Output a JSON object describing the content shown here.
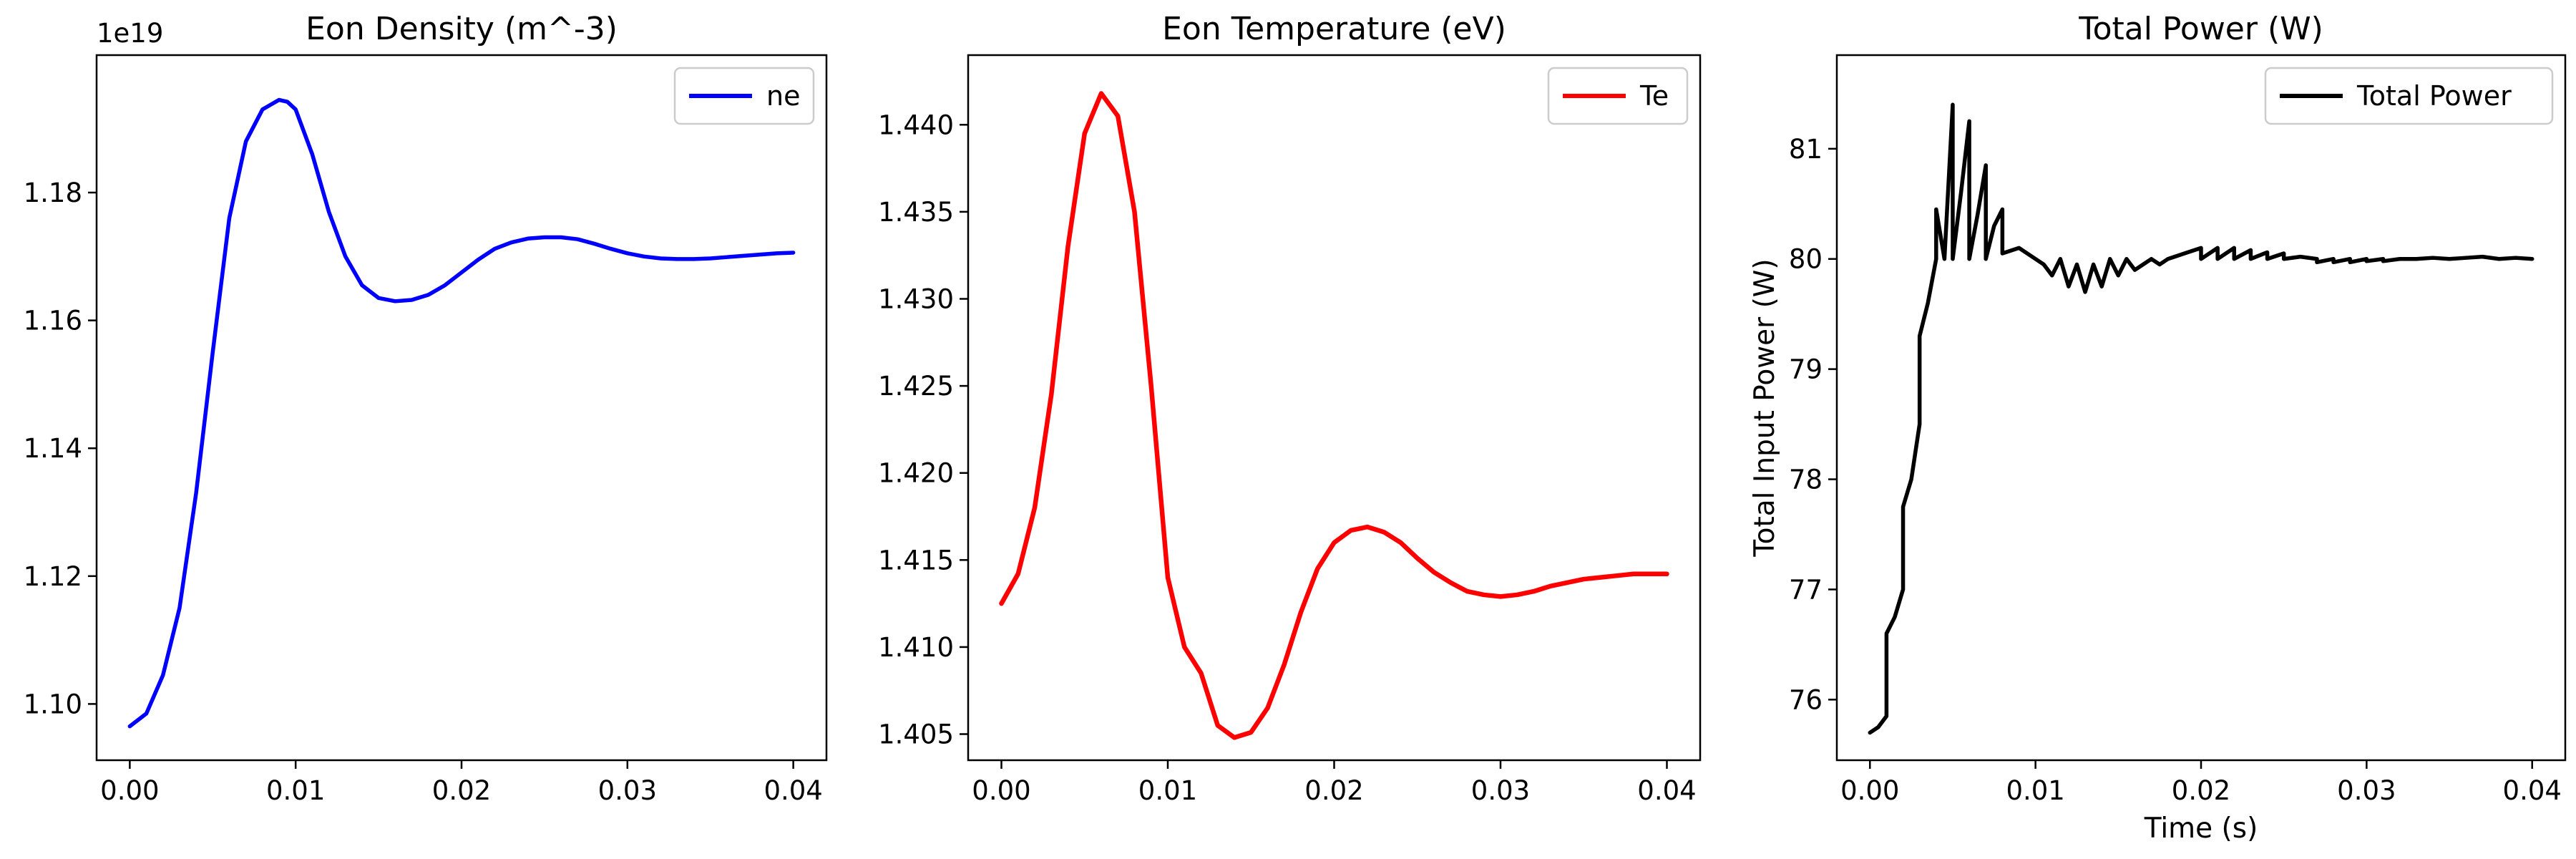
{
  "chart_data": [
    {
      "type": "line",
      "title": "Eon Density (m^-3)",
      "xlabel": "",
      "ylabel": "",
      "offset_text": "1e19",
      "xlim": [
        -0.002,
        0.042
      ],
      "ylim": [
        1.0912,
        1.2015
      ],
      "xticks": [
        0,
        0.01,
        0.02,
        0.03,
        0.04
      ],
      "xtick_labels": [
        "0.00",
        "0.01",
        "0.02",
        "0.03",
        "0.04"
      ],
      "yticks": [
        1.1,
        1.12,
        1.14,
        1.16,
        1.18
      ],
      "ytick_labels": [
        "1.10",
        "1.12",
        "1.14",
        "1.16",
        "1.18"
      ],
      "grid": false,
      "legend_position": "upper right",
      "series": [
        {
          "name": "ne",
          "color": "#0000ff",
          "x": [
            0,
            0.001,
            0.002,
            0.003,
            0.004,
            0.005,
            0.006,
            0.007,
            0.008,
            0.009,
            0.0095,
            0.01,
            0.011,
            0.012,
            0.013,
            0.014,
            0.015,
            0.016,
            0.017,
            0.018,
            0.019,
            0.02,
            0.021,
            0.022,
            0.023,
            0.024,
            0.025,
            0.026,
            0.027,
            0.028,
            0.029,
            0.03,
            0.031,
            0.032,
            0.033,
            0.034,
            0.035,
            0.036,
            0.037,
            0.038,
            0.039,
            0.04
          ],
          "y": [
            1.0965,
            1.0985,
            1.1045,
            1.115,
            1.133,
            1.155,
            1.176,
            1.188,
            1.193,
            1.1945,
            1.1942,
            1.193,
            1.186,
            1.177,
            1.17,
            1.1655,
            1.1635,
            1.163,
            1.1632,
            1.164,
            1.1655,
            1.1675,
            1.1695,
            1.1712,
            1.1722,
            1.1728,
            1.173,
            1.173,
            1.1727,
            1.172,
            1.1712,
            1.1705,
            1.17,
            1.1697,
            1.1696,
            1.1696,
            1.1697,
            1.1699,
            1.1701,
            1.1703,
            1.1705,
            1.1706
          ]
        }
      ]
    },
    {
      "type": "line",
      "title": "Eon Temperature (eV)",
      "xlabel": "",
      "ylabel": "",
      "xlim": [
        -0.002,
        0.042
      ],
      "ylim": [
        1.4035,
        1.444
      ],
      "xticks": [
        0,
        0.01,
        0.02,
        0.03,
        0.04
      ],
      "xtick_labels": [
        "0.00",
        "0.01",
        "0.02",
        "0.03",
        "0.04"
      ],
      "yticks": [
        1.405,
        1.41,
        1.415,
        1.42,
        1.425,
        1.43,
        1.435,
        1.44
      ],
      "ytick_labels": [
        "1.405",
        "1.410",
        "1.415",
        "1.420",
        "1.425",
        "1.430",
        "1.435",
        "1.440"
      ],
      "grid": false,
      "legend_position": "upper right",
      "series": [
        {
          "name": "Te",
          "color": "#ff0000",
          "x": [
            0,
            0.001,
            0.002,
            0.003,
            0.004,
            0.005,
            0.006,
            0.007,
            0.008,
            0.009,
            0.01,
            0.011,
            0.012,
            0.013,
            0.014,
            0.015,
            0.016,
            0.017,
            0.018,
            0.019,
            0.02,
            0.021,
            0.022,
            0.023,
            0.024,
            0.025,
            0.026,
            0.027,
            0.028,
            0.029,
            0.03,
            0.031,
            0.032,
            0.033,
            0.034,
            0.035,
            0.036,
            0.037,
            0.038,
            0.039,
            0.04
          ],
          "y": [
            1.4125,
            1.4142,
            1.418,
            1.4245,
            1.433,
            1.4395,
            1.4418,
            1.4405,
            1.435,
            1.425,
            1.414,
            1.41,
            1.4085,
            1.4055,
            1.4048,
            1.4051,
            1.4065,
            1.409,
            1.412,
            1.4145,
            1.416,
            1.4167,
            1.4169,
            1.4166,
            1.416,
            1.4151,
            1.4143,
            1.4137,
            1.4132,
            1.413,
            1.4129,
            1.413,
            1.4132,
            1.4135,
            1.4137,
            1.4139,
            1.414,
            1.4141,
            1.4142,
            1.4142,
            1.4142
          ]
        }
      ]
    },
    {
      "type": "line",
      "title": "Total Power (W)",
      "xlabel": "Time (s)",
      "ylabel": "Total Input Power (W)",
      "xlim": [
        -0.002,
        0.042
      ],
      "ylim": [
        75.45,
        81.85
      ],
      "xticks": [
        0,
        0.01,
        0.02,
        0.03,
        0.04
      ],
      "xtick_labels": [
        "0.00",
        "0.01",
        "0.02",
        "0.03",
        "0.04"
      ],
      "yticks": [
        76,
        77,
        78,
        79,
        80,
        81
      ],
      "ytick_labels": [
        "76",
        "77",
        "78",
        "79",
        "80",
        "81"
      ],
      "grid": false,
      "legend_position": "upper right",
      "series": [
        {
          "name": "Total Power",
          "color": "#000000",
          "x": [
            0,
            0.0005,
            0.001,
            0.001,
            0.0015,
            0.002,
            0.002,
            0.0025,
            0.003,
            0.003,
            0.0035,
            0.004,
            0.004,
            0.0045,
            0.005,
            0.005,
            0.0055,
            0.006,
            0.006,
            0.0065,
            0.007,
            0.007,
            0.0075,
            0.008,
            0.008,
            0.009,
            0.01,
            0.0105,
            0.011,
            0.0115,
            0.012,
            0.0125,
            0.013,
            0.0135,
            0.014,
            0.0145,
            0.015,
            0.0155,
            0.016,
            0.0165,
            0.017,
            0.0175,
            0.018,
            0.019,
            0.02,
            0.02,
            0.021,
            0.021,
            0.022,
            0.022,
            0.023,
            0.023,
            0.024,
            0.024,
            0.025,
            0.025,
            0.026,
            0.027,
            0.027,
            0.028,
            0.028,
            0.029,
            0.029,
            0.03,
            0.03,
            0.031,
            0.031,
            0.032,
            0.032,
            0.033,
            0.034,
            0.035,
            0.036,
            0.037,
            0.038,
            0.039,
            0.04
          ],
          "y": [
            75.7,
            75.75,
            75.85,
            76.6,
            76.75,
            77.0,
            77.75,
            78.0,
            78.5,
            79.3,
            79.6,
            80.0,
            80.45,
            80.0,
            81.4,
            80.0,
            80.6,
            81.25,
            80.0,
            80.4,
            80.85,
            80.0,
            80.3,
            80.45,
            80.05,
            80.1,
            80.0,
            79.95,
            79.85,
            80.0,
            79.75,
            79.95,
            79.7,
            79.95,
            79.75,
            80.0,
            79.85,
            80.0,
            79.9,
            79.95,
            80.0,
            79.95,
            80.0,
            80.05,
            80.1,
            80.0,
            80.1,
            80.0,
            80.1,
            80.0,
            80.08,
            80.0,
            80.06,
            80.0,
            80.05,
            80.0,
            80.02,
            80.0,
            79.97,
            80.0,
            79.97,
            80.0,
            79.97,
            80.0,
            79.98,
            80.0,
            79.98,
            80.0,
            80.0,
            80.0,
            80.01,
            80.0,
            80.01,
            80.02,
            80.0,
            80.01,
            80.0
          ]
        }
      ]
    }
  ]
}
